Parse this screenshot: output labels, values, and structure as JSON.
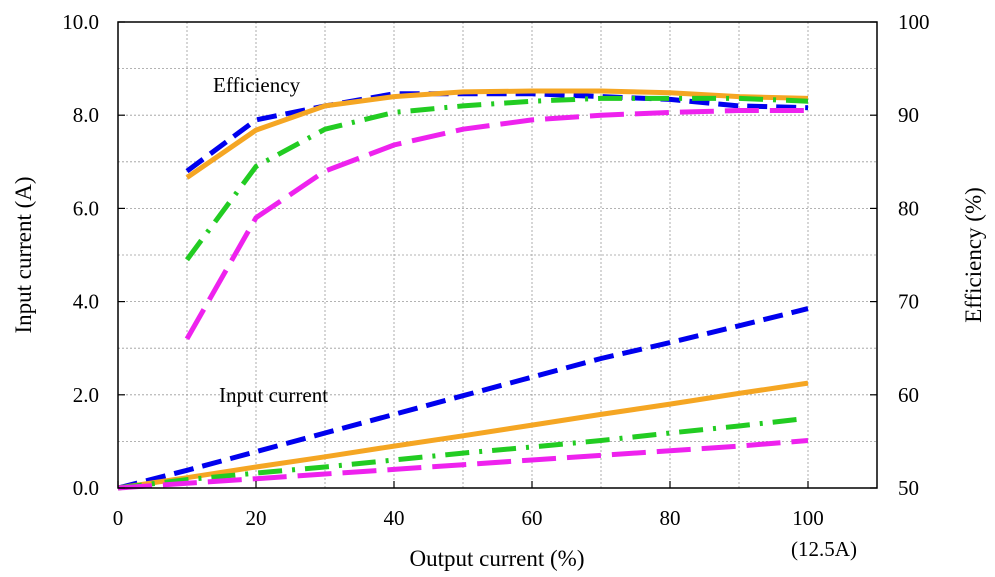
{
  "chart_data": {
    "type": "line",
    "xlabel": "Output current (%)",
    "ylabel_left": "Input current (A)",
    "ylabel_right": "Efficiency (%)",
    "x_note": "(12.5A)",
    "xlim": [
      0,
      110
    ],
    "ylim_left": [
      0,
      10
    ],
    "ylim_right": [
      50,
      100
    ],
    "x_ticks": [
      "0",
      "20",
      "40",
      "60",
      "80",
      "100"
    ],
    "y_left_ticks": [
      "0.0",
      "2.0",
      "4.0",
      "6.0",
      "8.0",
      "10.0"
    ],
    "y_right_ticks": [
      "50",
      "60",
      "70",
      "80",
      "90",
      "100"
    ],
    "grid": true,
    "annotations": [
      {
        "text": "Efficiency"
      },
      {
        "text": "Input current"
      }
    ],
    "series": [
      {
        "group": "efficiency",
        "axis": "right",
        "color": "#0000ee",
        "style": "dashed",
        "x": [
          10,
          20,
          30,
          40,
          50,
          60,
          70,
          80,
          90,
          100
        ],
        "y": [
          84.0,
          89.5,
          91.0,
          92.3,
          92.3,
          92.3,
          92.0,
          91.7,
          91.0,
          90.8
        ]
      },
      {
        "group": "efficiency",
        "axis": "right",
        "color": "#f5a623",
        "style": "solid",
        "x": [
          10,
          20,
          30,
          40,
          50,
          60,
          70,
          80,
          90,
          100
        ],
        "y": [
          83.3,
          88.4,
          91.0,
          92.0,
          92.5,
          92.6,
          92.6,
          92.4,
          92.0,
          91.8
        ]
      },
      {
        "group": "efficiency",
        "axis": "right",
        "color": "#22cc22",
        "style": "dashdot",
        "x": [
          10,
          20,
          30,
          40,
          50,
          60,
          70,
          80,
          90,
          100
        ],
        "y": [
          74.5,
          84.5,
          88.5,
          90.3,
          91.0,
          91.5,
          91.8,
          91.8,
          91.8,
          91.5
        ]
      },
      {
        "group": "efficiency",
        "axis": "right",
        "color": "#ee22ee",
        "style": "longdash",
        "x": [
          10,
          20,
          30,
          40,
          50,
          60,
          70,
          80,
          90,
          100
        ],
        "y": [
          66.0,
          79.0,
          84.0,
          86.8,
          88.5,
          89.5,
          90.0,
          90.3,
          90.5,
          90.5
        ]
      },
      {
        "group": "input",
        "axis": "left",
        "color": "#0000ee",
        "style": "dashed",
        "x": [
          0,
          10,
          20,
          30,
          40,
          50,
          60,
          70,
          80,
          90,
          100
        ],
        "y": [
          0.0,
          0.38,
          0.78,
          1.18,
          1.58,
          1.98,
          2.38,
          2.78,
          3.12,
          3.48,
          3.85
        ]
      },
      {
        "group": "input",
        "axis": "left",
        "color": "#f5a623",
        "style": "solid",
        "x": [
          0,
          10,
          20,
          30,
          40,
          50,
          60,
          70,
          80,
          90,
          100
        ],
        "y": [
          0.0,
          0.22,
          0.45,
          0.67,
          0.9,
          1.12,
          1.35,
          1.58,
          1.8,
          2.03,
          2.25
        ]
      },
      {
        "group": "input",
        "axis": "left",
        "color": "#22cc22",
        "style": "dashdot",
        "x": [
          0,
          10,
          20,
          30,
          40,
          50,
          60,
          70,
          80,
          90,
          99
        ],
        "y": [
          0.0,
          0.18,
          0.32,
          0.45,
          0.6,
          0.75,
          0.88,
          1.02,
          1.18,
          1.33,
          1.48
        ]
      },
      {
        "group": "input",
        "axis": "left",
        "color": "#ee22ee",
        "style": "longdash",
        "x": [
          0,
          10,
          20,
          30,
          40,
          50,
          60,
          70,
          80,
          90,
          100
        ],
        "y": [
          0.0,
          0.1,
          0.2,
          0.3,
          0.4,
          0.5,
          0.6,
          0.7,
          0.8,
          0.9,
          1.02
        ]
      }
    ]
  }
}
